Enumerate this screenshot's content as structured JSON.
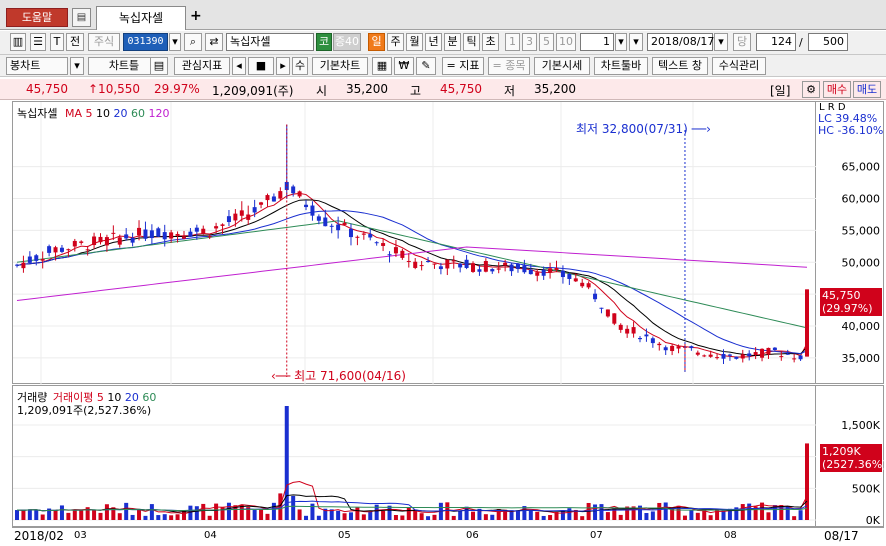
{
  "tabs": {
    "help": "도움말",
    "active": "녹십자셀",
    "add": "+"
  },
  "toolbar1": {
    "seg_jeon": "전",
    "label_stock": "주식",
    "code": "031390",
    "name": "녹십자셀",
    "market_badge": "코",
    "margin_badge": "증40",
    "periods": [
      "일",
      "주",
      "월",
      "년",
      "분",
      "틱",
      "초"
    ],
    "minutes": [
      "1",
      "3",
      "5",
      "10"
    ],
    "unit_value": "1",
    "date": "2018/08/17",
    "dang": "당",
    "count": "124",
    "slash": "/",
    "total": "500"
  },
  "toolbar2": {
    "b1": "봉차트",
    "b2": "차트틀",
    "b3": "관심지표",
    "b4": "수",
    "b5": "기본차트",
    "b6": "₩",
    "b7": "= 지표",
    "b8": "= 종목",
    "b9": "기본시세",
    "b10": "차트툴바",
    "b11": "텍스트 창",
    "b12": "수식관리"
  },
  "quote": {
    "price": "45,750",
    "change": "↑10,550",
    "rate": "29.97%",
    "volume": "1,209,091(주)",
    "open_label": "시",
    "open": "35,200",
    "high_label": "고",
    "high": "45,750",
    "low_label": "저",
    "low": "35,200",
    "period": "[일]",
    "buy": "매수",
    "sell": "매도"
  },
  "price_legend": {
    "name": "녹십자셀",
    "ma": "MA",
    "ma_periods": [
      "5",
      "10",
      "20",
      "60",
      "120"
    ]
  },
  "volume_legend": {
    "title": "거래량",
    "avg": "거래이평",
    "avg_periods": [
      "5",
      "10",
      "20",
      "60"
    ],
    "value": "1,209,091주(2,527.36%)"
  },
  "price_axis_header": {
    "lrd": "L R D",
    "lc": "LC  39.48%",
    "hc": "HC -36.10%"
  },
  "annotations": {
    "low": "최저 32,800(07/31)",
    "high": "최고 71,600(04/16)"
  },
  "last_price_tag": {
    "price": "45,750",
    "rate": "(29.97%)"
  },
  "last_volume_tag": {
    "value": "1,209K",
    "rate": "(2527.36%)"
  },
  "x_labels": {
    "start": "2018/02",
    "months": [
      "03",
      "04",
      "05",
      "06",
      "07",
      "08"
    ],
    "end": "08/17"
  },
  "colors": {
    "up": "#d0021b",
    "down": "#1a2fd0",
    "ma5": "#d0021b",
    "ma10": "#000000",
    "ma20": "#1a2fd0",
    "ma60": "#2e8b57",
    "ma120": "#c020d0"
  },
  "chart_data": {
    "type": "candlestick",
    "title": "녹십자셀",
    "x_range": [
      "2018/02",
      "2018/08/17"
    ],
    "ylim": [
      32000,
      72000
    ],
    "y_ticks": [
      35000,
      40000,
      45000,
      50000,
      55000,
      60000,
      65000
    ],
    "y_tick_labels": [
      "35,000",
      "40,000",
      "45,000",
      "50,000",
      "55,000",
      "60,000",
      "65,000"
    ],
    "monthly_close_approx": {
      "02": 51000,
      "03": 54000,
      "04": 58000,
      "05": 49000,
      "06": 48000,
      "07": 36000,
      "08": 35200
    },
    "last": {
      "date": "2018/08/17",
      "open": 35200,
      "high": 45750,
      "low": 35200,
      "close": 45750,
      "change_pct": 29.97
    },
    "high_point": {
      "date": "04/16",
      "value": 71600
    },
    "low_point": {
      "date": "07/31",
      "value": 32800
    },
    "volume": {
      "y_ticks": [
        0,
        500000,
        1000000,
        1500000
      ],
      "y_tick_labels": [
        "0K",
        "500K",
        "1,000K",
        "1,500K"
      ],
      "ylim": [
        0,
        1800000
      ],
      "last": 1209091,
      "peak": {
        "date": "04/16",
        "value": 1800000
      }
    },
    "series": [
      {
        "name": "MA 5"
      },
      {
        "name": "10"
      },
      {
        "name": "20"
      },
      {
        "name": "60"
      },
      {
        "name": "120"
      }
    ]
  }
}
